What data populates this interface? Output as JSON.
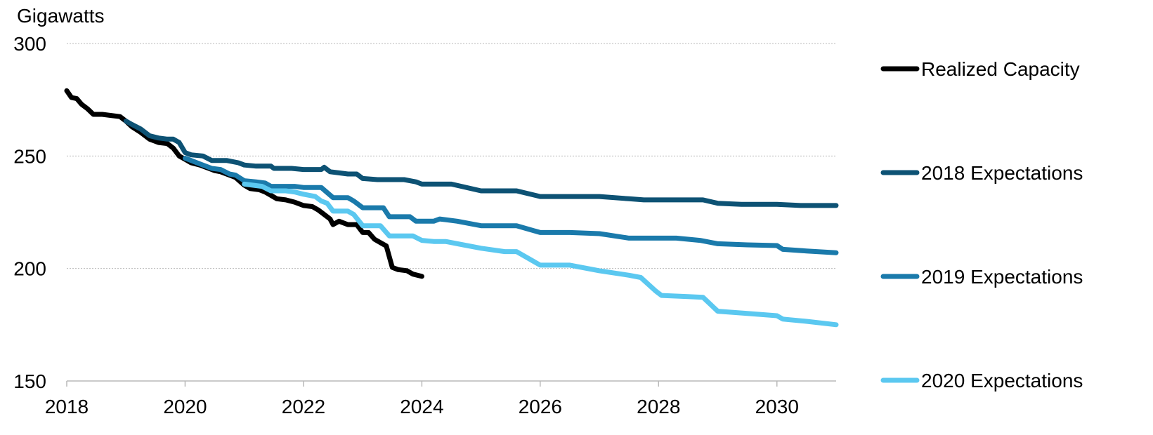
{
  "chart_data": {
    "type": "line",
    "ylabel": "Gigawatts",
    "x_ticks": [
      "2018",
      "2020",
      "2022",
      "2024",
      "2026",
      "2028",
      "2030"
    ],
    "y_ticks": [
      "150",
      "200",
      "250",
      "300"
    ],
    "xlim": [
      2018,
      2031
    ],
    "ylim": [
      150,
      300
    ],
    "grid": true,
    "legend_position": "right",
    "series": [
      {
        "name": "Realized Capacity",
        "color": "#000000",
        "points": [
          [
            2018.0,
            279
          ],
          [
            2018.08,
            276
          ],
          [
            2018.17,
            275.5
          ],
          [
            2018.25,
            273
          ],
          [
            2018.35,
            271
          ],
          [
            2018.45,
            268.5
          ],
          [
            2018.6,
            268.5
          ],
          [
            2018.75,
            268
          ],
          [
            2018.9,
            267.5
          ],
          [
            2019.0,
            265.5
          ],
          [
            2019.1,
            263
          ],
          [
            2019.25,
            260.5
          ],
          [
            2019.4,
            257.5
          ],
          [
            2019.55,
            256
          ],
          [
            2019.7,
            255.5
          ],
          [
            2019.8,
            253.5
          ],
          [
            2019.9,
            250
          ],
          [
            2020.0,
            248.5
          ],
          [
            2020.1,
            247
          ],
          [
            2020.25,
            246
          ],
          [
            2020.4,
            244.5
          ],
          [
            2020.5,
            243.5
          ],
          [
            2020.6,
            243
          ],
          [
            2020.75,
            241.5
          ],
          [
            2020.85,
            240.5
          ],
          [
            2021.0,
            237
          ],
          [
            2021.1,
            235.5
          ],
          [
            2021.25,
            235
          ],
          [
            2021.35,
            234
          ],
          [
            2021.45,
            232.5
          ],
          [
            2021.55,
            231
          ],
          [
            2021.7,
            230.5
          ],
          [
            2021.85,
            229.5
          ],
          [
            2022.0,
            228
          ],
          [
            2022.15,
            227.5
          ],
          [
            2022.25,
            226
          ],
          [
            2022.35,
            224
          ],
          [
            2022.45,
            222
          ],
          [
            2022.5,
            219.5
          ],
          [
            2022.6,
            221
          ],
          [
            2022.75,
            219.5
          ],
          [
            2022.9,
            219.5
          ],
          [
            2023.0,
            216
          ],
          [
            2023.1,
            216
          ],
          [
            2023.2,
            213
          ],
          [
            2023.3,
            211.5
          ],
          [
            2023.4,
            210
          ],
          [
            2023.5,
            200.5
          ],
          [
            2023.6,
            199.5
          ],
          [
            2023.75,
            199
          ],
          [
            2023.85,
            197.5
          ],
          [
            2024.0,
            196.5
          ]
        ]
      },
      {
        "name": "2018 Expectations",
        "color": "#0d5274",
        "points": [
          [
            2019.0,
            265.5
          ],
          [
            2019.1,
            264
          ],
          [
            2019.25,
            262
          ],
          [
            2019.4,
            259
          ],
          [
            2019.55,
            258
          ],
          [
            2019.7,
            257.5
          ],
          [
            2019.8,
            257.5
          ],
          [
            2019.9,
            256
          ],
          [
            2020.0,
            251.5
          ],
          [
            2020.1,
            250.5
          ],
          [
            2020.3,
            250
          ],
          [
            2020.45,
            248
          ],
          [
            2020.7,
            248
          ],
          [
            2020.9,
            247
          ],
          [
            2021.0,
            246
          ],
          [
            2021.2,
            245.5
          ],
          [
            2021.45,
            245.5
          ],
          [
            2021.5,
            244.5
          ],
          [
            2021.8,
            244.5
          ],
          [
            2022.0,
            244
          ],
          [
            2022.3,
            244
          ],
          [
            2022.35,
            245
          ],
          [
            2022.45,
            243
          ],
          [
            2022.6,
            242.5
          ],
          [
            2022.75,
            242
          ],
          [
            2022.9,
            242
          ],
          [
            2023.0,
            240
          ],
          [
            2023.25,
            239.5
          ],
          [
            2023.5,
            239.5
          ],
          [
            2023.7,
            239.5
          ],
          [
            2023.9,
            238.5
          ],
          [
            2024.0,
            237.5
          ],
          [
            2024.5,
            237.5
          ],
          [
            2025.0,
            234.5
          ],
          [
            2025.6,
            234.5
          ],
          [
            2026.0,
            232
          ],
          [
            2026.5,
            232
          ],
          [
            2027.0,
            232
          ],
          [
            2027.5,
            231
          ],
          [
            2027.75,
            230.5
          ],
          [
            2028.5,
            230.5
          ],
          [
            2028.75,
            230.5
          ],
          [
            2029.0,
            229
          ],
          [
            2029.4,
            228.5
          ],
          [
            2030.0,
            228.5
          ],
          [
            2030.4,
            228
          ],
          [
            2031.0,
            228
          ]
        ]
      },
      {
        "name": "2019 Expectations",
        "color": "#1a7aab",
        "points": [
          [
            2020.0,
            249
          ],
          [
            2020.1,
            248
          ],
          [
            2020.25,
            246.5
          ],
          [
            2020.45,
            244.5
          ],
          [
            2020.6,
            244
          ],
          [
            2020.75,
            242
          ],
          [
            2020.85,
            241.5
          ],
          [
            2021.0,
            239
          ],
          [
            2021.2,
            238.5
          ],
          [
            2021.35,
            238
          ],
          [
            2021.45,
            236.5
          ],
          [
            2021.7,
            236.5
          ],
          [
            2021.85,
            236.5
          ],
          [
            2022.0,
            236
          ],
          [
            2022.3,
            236
          ],
          [
            2022.5,
            231.5
          ],
          [
            2022.75,
            231.5
          ],
          [
            2022.85,
            230
          ],
          [
            2023.0,
            227
          ],
          [
            2023.35,
            227
          ],
          [
            2023.45,
            223
          ],
          [
            2023.8,
            223
          ],
          [
            2023.9,
            221
          ],
          [
            2024.2,
            221
          ],
          [
            2024.3,
            222
          ],
          [
            2024.6,
            221
          ],
          [
            2025.0,
            219
          ],
          [
            2025.5,
            219
          ],
          [
            2025.6,
            219
          ],
          [
            2026.0,
            216
          ],
          [
            2026.5,
            216
          ],
          [
            2027.0,
            215.5
          ],
          [
            2027.5,
            213.5
          ],
          [
            2028.0,
            213.5
          ],
          [
            2028.3,
            213.5
          ],
          [
            2028.7,
            212.5
          ],
          [
            2029.0,
            211
          ],
          [
            2029.5,
            210.5
          ],
          [
            2030.0,
            210.2
          ],
          [
            2030.1,
            208.5
          ],
          [
            2030.5,
            207.8
          ],
          [
            2031.0,
            207
          ]
        ]
      },
      {
        "name": "2020 Expectations",
        "color": "#5bc8f0",
        "points": [
          [
            2021.0,
            237.5
          ],
          [
            2021.15,
            237
          ],
          [
            2021.3,
            236.5
          ],
          [
            2021.45,
            234.5
          ],
          [
            2021.7,
            234.5
          ],
          [
            2021.85,
            234
          ],
          [
            2022.0,
            233
          ],
          [
            2022.2,
            232
          ],
          [
            2022.3,
            230
          ],
          [
            2022.4,
            229
          ],
          [
            2022.5,
            225.5
          ],
          [
            2022.75,
            225.5
          ],
          [
            2022.85,
            224
          ],
          [
            2023.0,
            219
          ],
          [
            2023.3,
            219
          ],
          [
            2023.45,
            214.5
          ],
          [
            2023.85,
            214.5
          ],
          [
            2024.0,
            212.5
          ],
          [
            2024.2,
            212
          ],
          [
            2024.4,
            212
          ],
          [
            2024.7,
            210.5
          ],
          [
            2025.0,
            209
          ],
          [
            2025.4,
            207.5
          ],
          [
            2025.6,
            207.5
          ],
          [
            2026.0,
            201.5
          ],
          [
            2026.25,
            201.5
          ],
          [
            2026.5,
            201.5
          ],
          [
            2027.0,
            199
          ],
          [
            2027.5,
            197
          ],
          [
            2027.7,
            196
          ],
          [
            2027.95,
            190
          ],
          [
            2028.05,
            188
          ],
          [
            2028.5,
            187.5
          ],
          [
            2028.75,
            187.2
          ],
          [
            2029.0,
            181
          ],
          [
            2029.5,
            180
          ],
          [
            2030.0,
            179
          ],
          [
            2030.1,
            177.5
          ],
          [
            2030.5,
            176.5
          ],
          [
            2031.0,
            175
          ]
        ]
      }
    ]
  }
}
